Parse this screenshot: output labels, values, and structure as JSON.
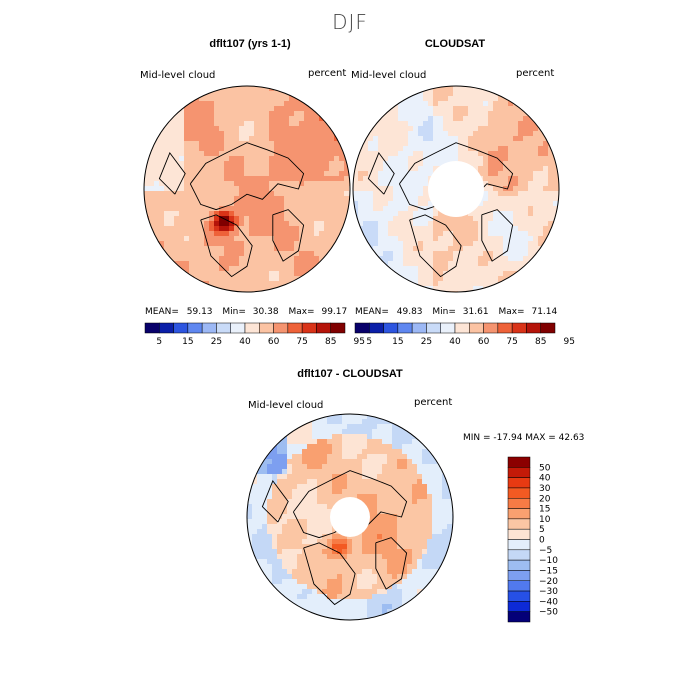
{
  "chart_data": [
    {
      "type": "heatmap",
      "projection": "north-polar-stereographic",
      "title": "dflt107 (yrs 1-1)",
      "left_label": "Mid-level cloud",
      "right_label": "percent",
      "stats": {
        "mean": "59.13",
        "min": "30.38",
        "max": "99.17"
      },
      "stats_labels": {
        "mean": "MEAN=",
        "min": "Min=",
        "max": "Max="
      },
      "colorbar": {
        "levels": [
          "5",
          "15",
          "25",
          "40",
          "60",
          "75",
          "85",
          "95"
        ],
        "colors": [
          "#08006a",
          "#0b1fa8",
          "#2d55e0",
          "#5f87f0",
          "#9cb8f5",
          "#c9dbf8",
          "#eaf1fb",
          "#fde5d6",
          "#fbc3a3",
          "#f59470",
          "#ee6239",
          "#d93318",
          "#b5140a",
          "#800000"
        ]
      }
    },
    {
      "type": "heatmap",
      "projection": "north-polar-stereographic",
      "title": "CLOUDSAT",
      "left_label": "Mid-level cloud",
      "right_label": "percent",
      "stats": {
        "mean": "49.83",
        "min": "31.61",
        "max": "71.14"
      },
      "stats_labels": {
        "mean": "MEAN=",
        "min": "Min=",
        "max": "Max="
      },
      "colorbar": {
        "levels": [
          "5",
          "15",
          "25",
          "40",
          "60",
          "75",
          "85",
          "95"
        ],
        "colors": [
          "#08006a",
          "#0b1fa8",
          "#2d55e0",
          "#5f87f0",
          "#9cb8f5",
          "#c9dbf8",
          "#eaf1fb",
          "#fde5d6",
          "#fbc3a3",
          "#f59470",
          "#ee6239",
          "#d93318",
          "#b5140a",
          "#800000"
        ]
      }
    },
    {
      "type": "heatmap",
      "projection": "north-polar-stereographic",
      "title": "dflt107 - CLOUDSAT",
      "left_label": "Mid-level cloud",
      "right_label": "percent",
      "min_max_text": "MIN = -17.94  MAX =  42.63",
      "colorbar": {
        "levels": [
          "50",
          "40",
          "30",
          "20",
          "15",
          "10",
          "5",
          "0",
          "−5",
          "−10",
          "−15",
          "−20",
          "−30",
          "−40",
          "−50"
        ],
        "colors": [
          "#8b0000",
          "#c41a08",
          "#e83a12",
          "#f35a22",
          "#f77b45",
          "#f9a070",
          "#fbc6a4",
          "#fde4d4",
          "#e3eefb",
          "#c4d8f6",
          "#9dbdf1",
          "#7d9ff0",
          "#5179ee",
          "#2650e6",
          "#0d2ad6",
          "#040078"
        ]
      }
    }
  ],
  "page": {
    "suptitle": "DJF"
  }
}
